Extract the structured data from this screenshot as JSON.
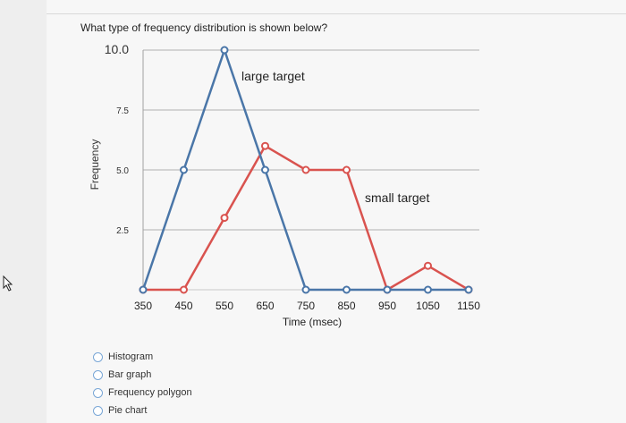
{
  "question": "What type of frequency distribution is shown below?",
  "options": [
    {
      "label": "Histogram"
    },
    {
      "label": "Bar graph"
    },
    {
      "label": "Frequency polygon"
    },
    {
      "label": "Pie chart"
    }
  ],
  "chart_data": {
    "type": "line",
    "x": [
      350,
      450,
      550,
      650,
      750,
      850,
      950,
      1050,
      1150
    ],
    "x_tick_labels": [
      "350",
      "450",
      "550",
      "650",
      "750",
      "850",
      "950",
      "1050",
      "1150"
    ],
    "y_tick_labels": [
      "2.5",
      "5.0",
      "7.5",
      "10.0"
    ],
    "y_ticks": [
      2.5,
      5.0,
      7.5,
      10.0
    ],
    "xlabel": "Time (msec)",
    "ylabel": "Frequency",
    "ylim": [
      0,
      10
    ],
    "grid": true,
    "series": [
      {
        "name": "large target",
        "color": "#4a76a8",
        "values": [
          0,
          5,
          10,
          5,
          0,
          0,
          0,
          0,
          0
        ]
      },
      {
        "name": "small target",
        "color": "#d9534f",
        "values": [
          0,
          0,
          3,
          6,
          5,
          5,
          0,
          1,
          0
        ]
      }
    ]
  }
}
